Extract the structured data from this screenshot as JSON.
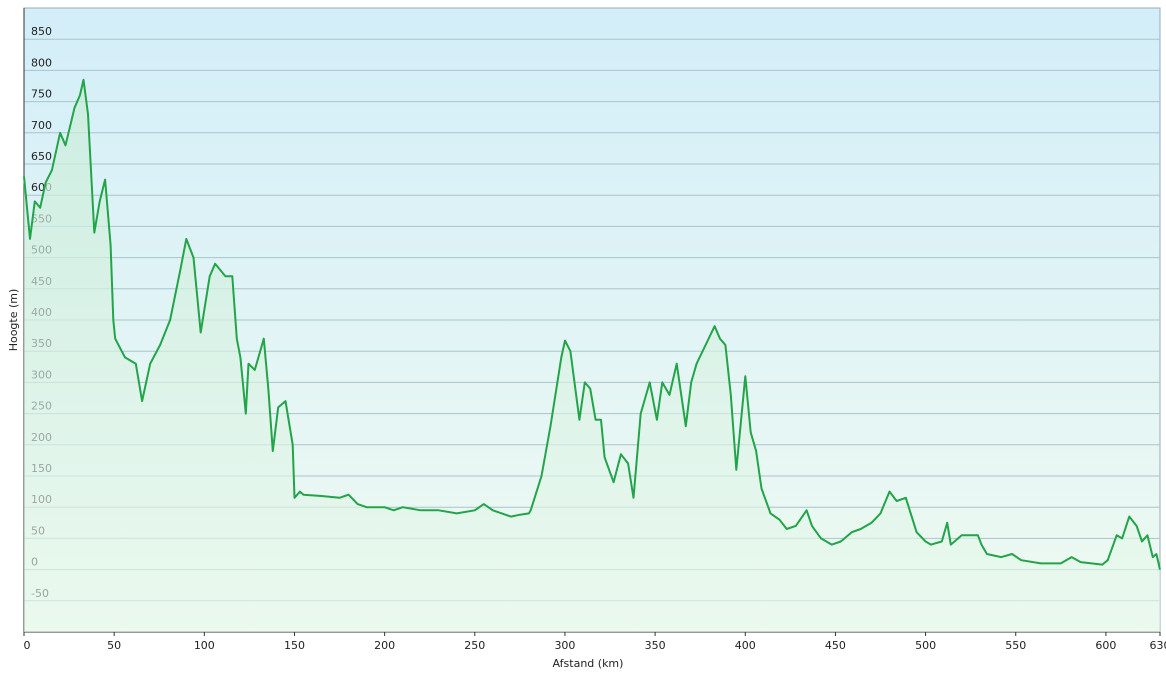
{
  "chart_data": {
    "type": "area",
    "x_label": "Afstand  (km)",
    "y_label": "Hoogte (m)",
    "x": [
      0,
      2,
      3.3,
      6,
      9,
      12,
      15.5,
      20,
      23,
      25.5,
      28,
      31,
      33,
      35.5,
      39,
      42,
      45,
      48,
      49.5,
      50.6,
      56,
      62,
      65.5,
      70,
      75.5,
      81,
      86.7,
      90,
      94,
      98,
      103,
      106,
      111.7,
      115.5,
      118,
      120,
      123,
      124.5,
      128,
      133,
      135.5,
      138,
      141,
      145,
      149,
      150,
      153,
      155,
      165,
      175,
      180,
      185,
      190,
      200,
      205,
      210,
      220,
      230,
      240,
      250,
      255,
      260,
      270,
      275,
      280,
      281,
      287,
      292,
      298,
      300,
      303,
      308,
      311,
      314,
      317,
      320,
      322,
      327,
      331,
      335,
      338,
      342,
      347,
      351,
      354,
      358,
      362,
      367,
      370,
      373,
      378,
      383,
      386,
      389,
      392,
      395,
      398,
      400,
      403,
      406,
      409,
      414,
      419,
      423,
      428,
      434,
      437,
      442,
      448,
      453,
      459,
      464,
      470,
      475,
      480,
      484,
      489,
      495,
      500,
      503,
      509,
      512,
      514,
      520,
      523,
      529,
      531,
      534,
      542,
      548,
      553,
      564,
      575,
      581,
      586,
      598,
      601,
      606,
      609,
      613,
      617,
      620,
      623,
      626,
      628,
      630
    ],
    "values": [
      630,
      570,
      530,
      590,
      580,
      620,
      640,
      700,
      680,
      710,
      740,
      760,
      785,
      730,
      540,
      590,
      625,
      520,
      400,
      370,
      340,
      330,
      270,
      330,
      360,
      400,
      480,
      530,
      500,
      380,
      470,
      490,
      470,
      470,
      370,
      340,
      250,
      330,
      320,
      370,
      290,
      190,
      260,
      270,
      200,
      115,
      125,
      120,
      118,
      115,
      120,
      105,
      100,
      100,
      95,
      100,
      95,
      95,
      90,
      95,
      105,
      95,
      85,
      88,
      90,
      95,
      150,
      230,
      340,
      367,
      350,
      240,
      300,
      290,
      240,
      240,
      180,
      140,
      185,
      170,
      115,
      250,
      300,
      240,
      300,
      280,
      330,
      230,
      300,
      330,
      360,
      390,
      370,
      360,
      280,
      160,
      250,
      310,
      220,
      190,
      130,
      90,
      80,
      65,
      70,
      95,
      70,
      50,
      40,
      45,
      60,
      65,
      75,
      90,
      125,
      110,
      115,
      60,
      45,
      40,
      45,
      75,
      40,
      55,
      55,
      55,
      40,
      25,
      20,
      25,
      15,
      10,
      10,
      20,
      12,
      8,
      15,
      55,
      50,
      85,
      70,
      45,
      55,
      20,
      25,
      0
    ],
    "color": "#22a448",
    "xlim": [
      0,
      630
    ],
    "xticks": [
      0,
      50,
      100,
      150,
      200,
      250,
      300,
      350,
      400,
      450,
      500,
      550,
      600,
      630
    ],
    "ylim": [
      -100,
      900
    ],
    "yticks": [
      -50,
      0,
      50,
      100,
      150,
      200,
      250,
      300,
      350,
      400,
      450,
      500,
      550,
      600,
      650,
      700,
      750,
      800,
      850
    ],
    "grid": true
  }
}
